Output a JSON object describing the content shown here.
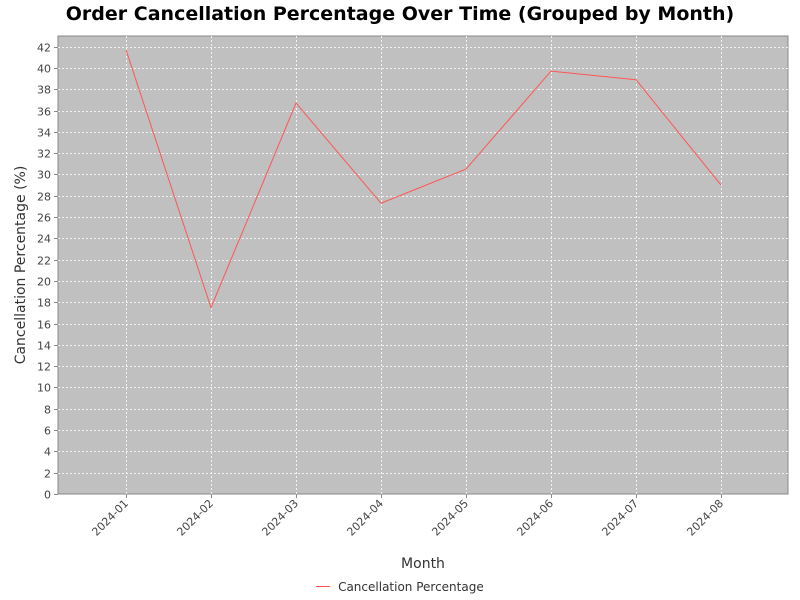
{
  "chart_data": {
    "type": "line",
    "title": "Order Cancellation Percentage Over Time (Grouped by Month)",
    "xlabel": "Month",
    "ylabel": "Cancellation Percentage (%)",
    "categories": [
      "2024-01",
      "2024-02",
      "2024-03",
      "2024-04",
      "2024-05",
      "2024-06",
      "2024-07",
      "2024-08"
    ],
    "series": [
      {
        "name": "Cancellation Percentage",
        "values": [
          41.7,
          17.5,
          36.7,
          27.3,
          30.5,
          39.7,
          38.9,
          29.0
        ],
        "color": "#ff5555"
      }
    ],
    "ylim": [
      0,
      43
    ],
    "yticks": [
      0,
      2,
      4,
      6,
      8,
      10,
      12,
      14,
      16,
      18,
      20,
      22,
      24,
      26,
      28,
      30,
      32,
      34,
      36,
      38,
      40,
      42
    ],
    "grid": true,
    "legend_position": "bottom",
    "plot_background": "#c0c0c0",
    "gridline_color": "#ffffff"
  }
}
